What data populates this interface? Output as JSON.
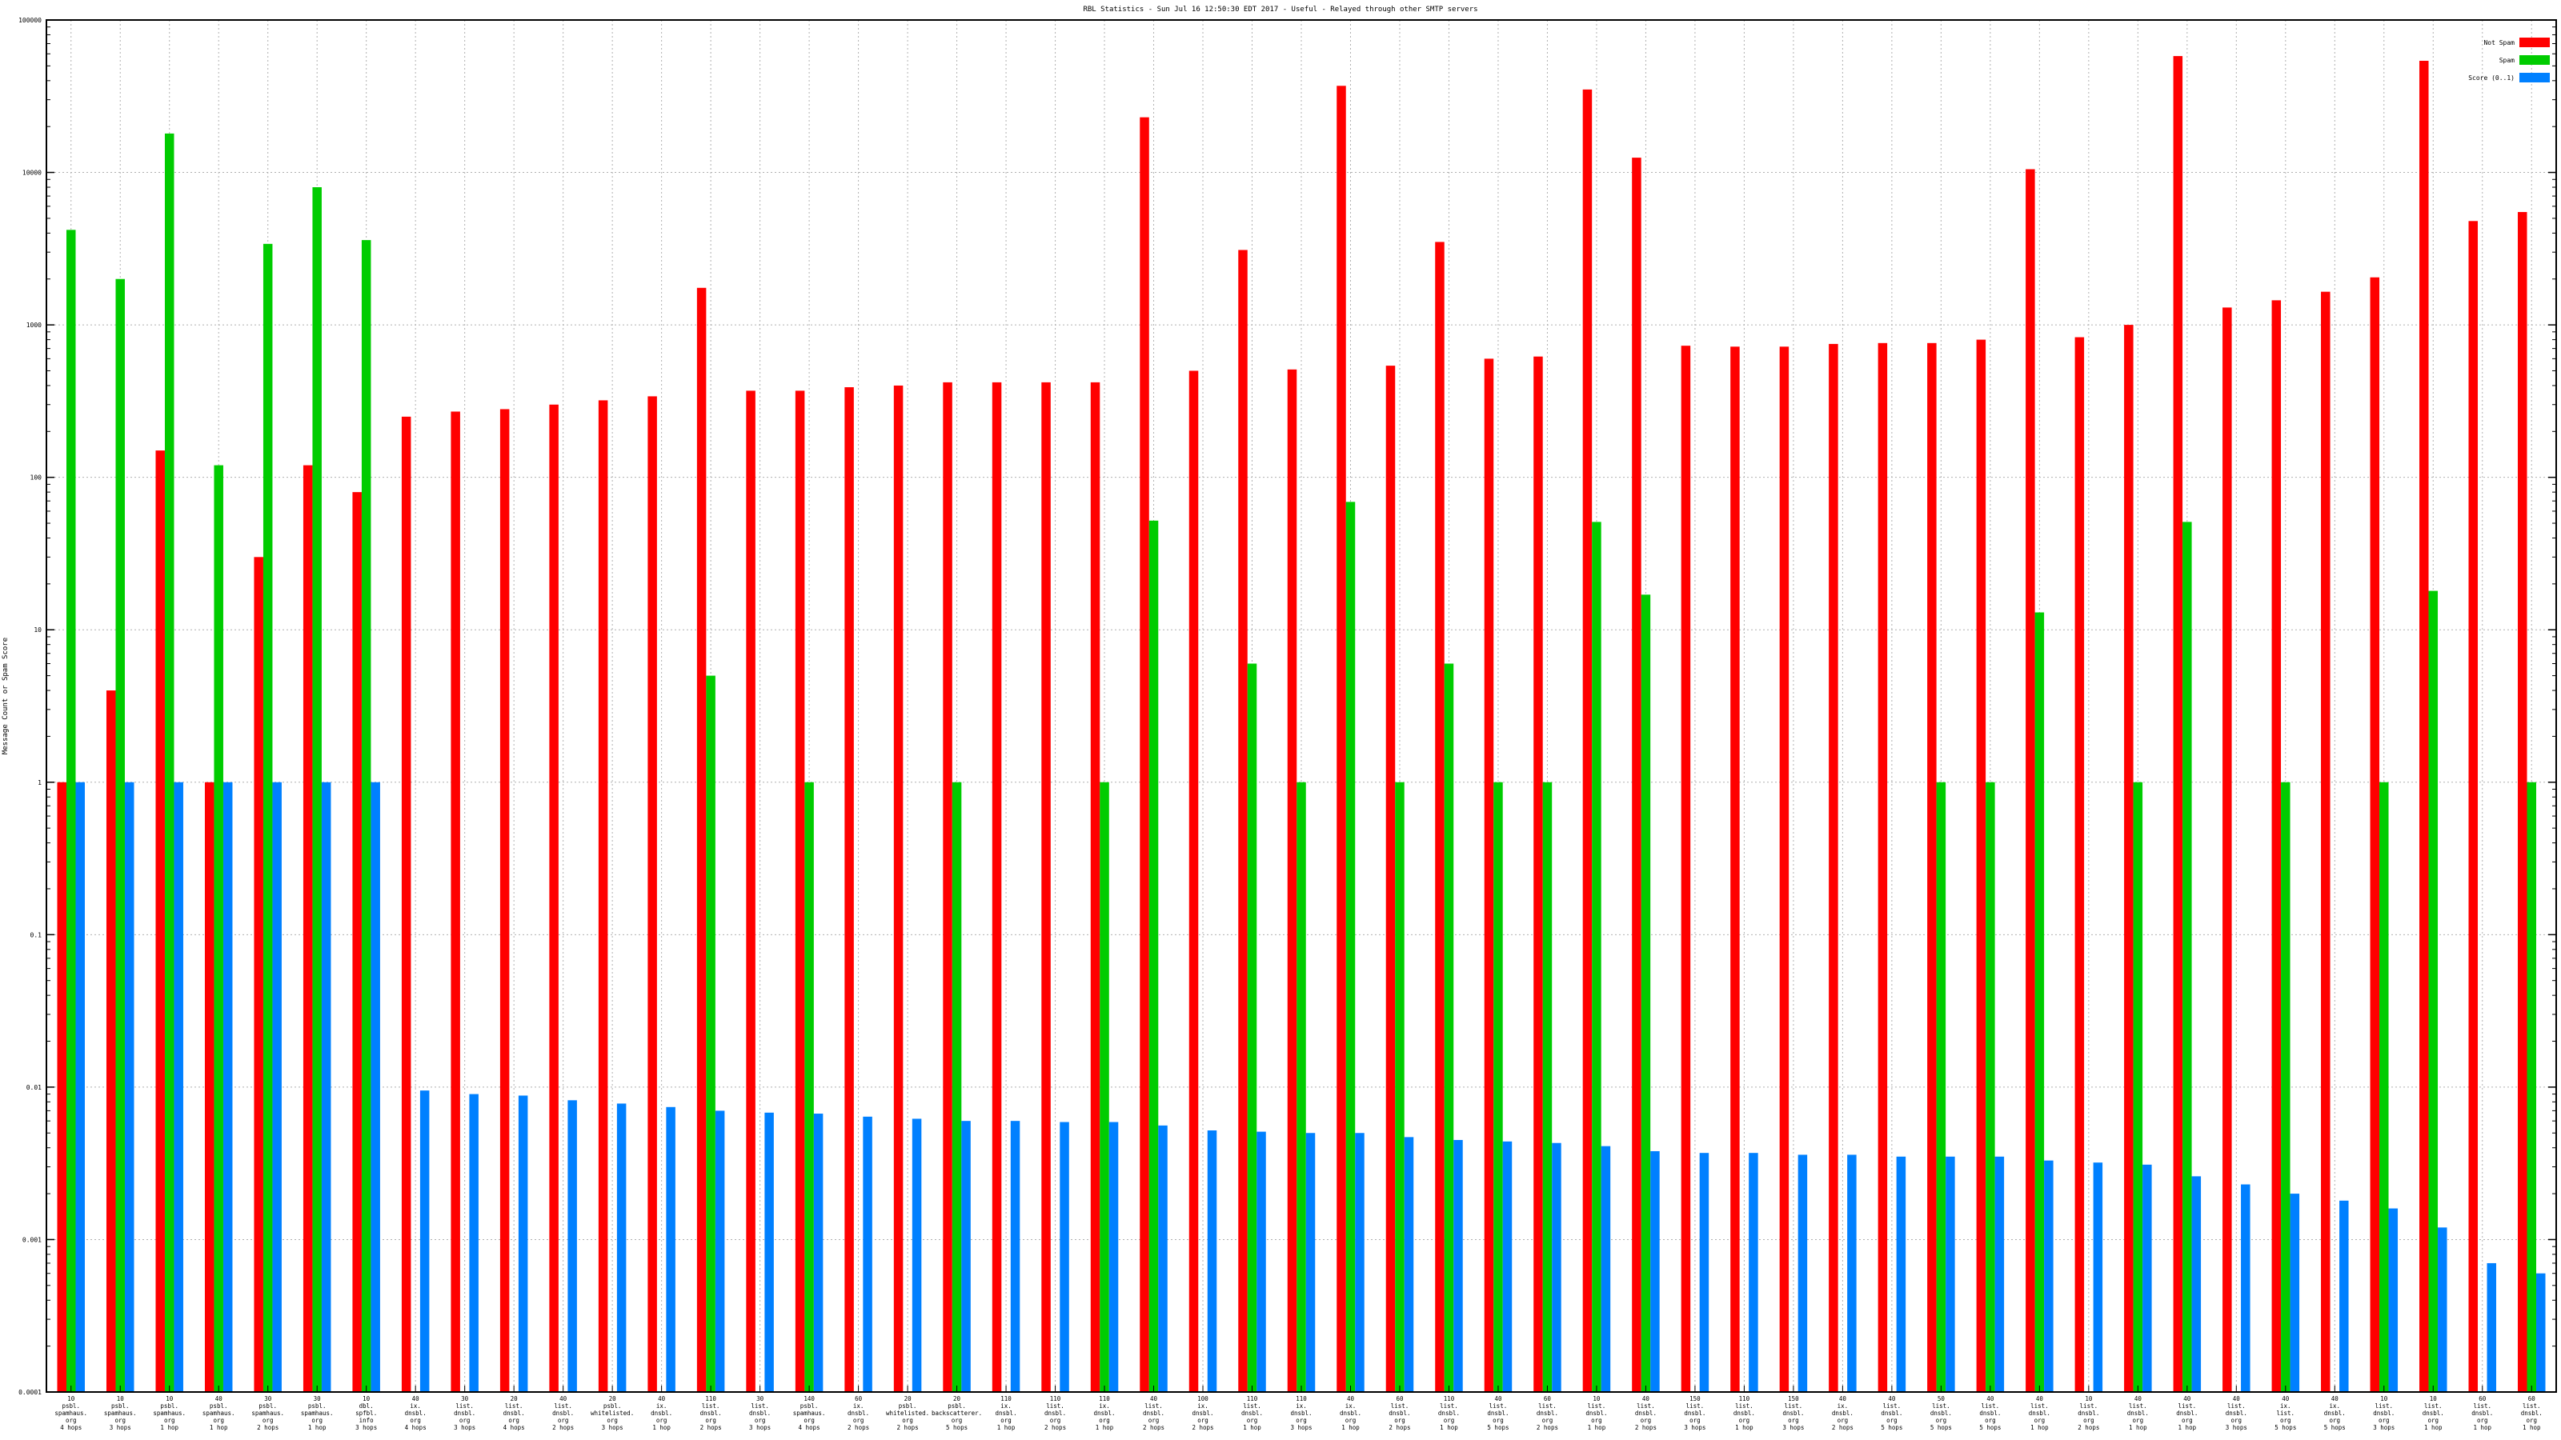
{
  "chart_data": {
    "type": "bar",
    "title": "RBL Statistics - Sun Jul 16 12:50:30 EDT 2017 - Useful - Relayed through other SMTP servers",
    "ylabel": "Message Count or Spam Score",
    "xlabel": "",
    "yscale": "log",
    "ylim": [
      0.0001,
      100000
    ],
    "grid": true,
    "legend_position": "top-right",
    "yticks": [
      "0.0001",
      "0.001",
      "0.01",
      "0.1",
      "1",
      "10",
      "100",
      "1000",
      "10000",
      "100000"
    ],
    "categories": [
      [
        "10",
        "psbl.",
        "spamhaus.",
        "org",
        "4 hops"
      ],
      [
        "10",
        "psbl.",
        "spamhaus.",
        "org",
        "3 hops"
      ],
      [
        "10",
        "psbl.",
        "spamhaus.",
        "org",
        "1 hop"
      ],
      [
        "40",
        "psbl.",
        "spamhaus.",
        "org",
        "1 hop"
      ],
      [
        "30",
        "psbl.",
        "spamhaus.",
        "org",
        "2 hops"
      ],
      [
        "30",
        "psbl.",
        "spamhaus.",
        "org",
        "1 hop"
      ],
      [
        "10",
        "dbl.",
        "spfbl.",
        "info",
        "3 hops"
      ],
      [
        "40",
        "ix.",
        "dnsbl.",
        "org",
        "4 hops"
      ],
      [
        "30",
        "list.",
        "dnsbl.",
        "org",
        "3 hops"
      ],
      [
        "20",
        "list.",
        "dnsbl.",
        "org",
        "4 hops"
      ],
      [
        "40",
        "list.",
        "dnsbl.",
        "org",
        "2 hops"
      ],
      [
        "20",
        "psbl.",
        "whitelisted.",
        "org",
        "3 hops"
      ],
      [
        "40",
        "ix.",
        "dnsbl.",
        "org",
        "1 hop"
      ],
      [
        "110",
        "list.",
        "dnsbl.",
        "org",
        "2 hops"
      ],
      [
        "30",
        "list.",
        "dnsbl.",
        "org",
        "3 hops"
      ],
      [
        "140",
        "psbl.",
        "spamhaus.",
        "org",
        "4 hops"
      ],
      [
        "60",
        "ix.",
        "dnsbl.",
        "org",
        "2 hops"
      ],
      [
        "20",
        "psbl.",
        "whitelisted.",
        "org",
        "2 hops"
      ],
      [
        "20",
        "psbl.",
        "backscatterer.",
        "org",
        "5 hops"
      ],
      [
        "110",
        "ix.",
        "dnsbl.",
        "org",
        "1 hop"
      ],
      [
        "110",
        "list.",
        "dnsbl.",
        "org",
        "2 hops"
      ],
      [
        "110",
        "ix.",
        "dnsbl.",
        "org",
        "1 hop"
      ],
      [
        "40",
        "list.",
        "dnsbl.",
        "org",
        "2 hops"
      ],
      [
        "100",
        "ix.",
        "dnsbl.",
        "org",
        "2 hops"
      ],
      [
        "110",
        "list.",
        "dnsbl.",
        "org",
        "1 hop"
      ],
      [
        "110",
        "ix.",
        "dnsbl.",
        "org",
        "3 hops"
      ],
      [
        "40",
        "ix.",
        "dnsbl.",
        "org",
        "1 hop"
      ],
      [
        "60",
        "list.",
        "dnsbl.",
        "org",
        "2 hops"
      ],
      [
        "110",
        "list.",
        "dnsbl.",
        "org",
        "1 hop"
      ],
      [
        "40",
        "list.",
        "dnsbl.",
        "org",
        "5 hops"
      ],
      [
        "60",
        "list.",
        "dnsbl.",
        "org",
        "2 hops"
      ],
      [
        "10",
        "list.",
        "dnsbl.",
        "org",
        "1 hop"
      ],
      [
        "40",
        "list.",
        "dnsbl.",
        "org",
        "2 hops"
      ],
      [
        "150",
        "list.",
        "dnsbl.",
        "org",
        "3 hops"
      ],
      [
        "110",
        "list.",
        "dnsbl.",
        "org",
        "1 hop"
      ],
      [
        "150",
        "list.",
        "dnsbl.",
        "org",
        "3 hops"
      ],
      [
        "40",
        "ix.",
        "dnsbl.",
        "org",
        "2 hops"
      ],
      [
        "40",
        "list.",
        "dnsbl.",
        "org",
        "5 hops"
      ],
      [
        "50",
        "list.",
        "dnsbl.",
        "org",
        "5 hops"
      ],
      [
        "40",
        "list.",
        "dnsbl.",
        "org",
        "5 hops"
      ],
      [
        "40",
        "list.",
        "dnsbl.",
        "org",
        "1 hop"
      ],
      [
        "10",
        "list.",
        "dnsbl.",
        "org",
        "2 hops"
      ],
      [
        "40",
        "list.",
        "dnsbl.",
        "org",
        "1 hop"
      ],
      [
        "40",
        "list.",
        "dnsbl.",
        "org",
        "1 hop"
      ],
      [
        "40",
        "list.",
        "dnsbl.",
        "org",
        "3 hops"
      ],
      [
        "40",
        "ix.",
        "list.",
        "org",
        "5 hops"
      ],
      [
        "40",
        "ix.",
        "dnsbl.",
        "org",
        "5 hops"
      ],
      [
        "10",
        "list.",
        "dnsbl.",
        "org",
        "3 hops"
      ],
      [
        "10",
        "list.",
        "dnsbl.",
        "org",
        "1 hop"
      ],
      [
        "60",
        "list.",
        "dnsbl.",
        "org",
        "1 hop"
      ],
      [
        "60",
        "list.",
        "dnsbl.",
        "org",
        "1 hop"
      ]
    ],
    "series": [
      {
        "name": "Not Spam",
        "color": "#ff0000",
        "values": [
          1,
          4,
          150,
          1,
          30,
          120,
          80,
          250,
          270,
          280,
          300,
          320,
          340,
          1750,
          370,
          370,
          390,
          400,
          420,
          420,
          420,
          420,
          23000,
          500,
          3100,
          510,
          37000,
          540,
          3500,
          600,
          620,
          35000,
          12500,
          730,
          720,
          720,
          750,
          760,
          760,
          800,
          10500,
          830,
          1000,
          58000,
          1300,
          1450,
          1650,
          2050,
          54000,
          4800,
          5500
        ]
      },
      {
        "name": "Spam",
        "color": "#00cc00",
        "values": [
          4200,
          2000,
          18000,
          120,
          3400,
          8000,
          3600,
          null,
          null,
          null,
          null,
          null,
          null,
          5,
          null,
          1,
          null,
          null,
          1,
          null,
          null,
          1,
          52,
          null,
          6,
          1,
          69,
          1,
          6,
          1,
          1,
          51,
          17,
          null,
          null,
          null,
          null,
          null,
          1,
          1,
          13,
          null,
          1,
          51,
          null,
          1,
          null,
          1,
          18,
          null,
          1
        ]
      },
      {
        "name": "Score (0..1)",
        "color": "#0080ff",
        "values": [
          1,
          1,
          1,
          1,
          1,
          1,
          1,
          0.0095,
          0.009,
          0.0088,
          0.0082,
          0.0078,
          0.0074,
          0.007,
          0.0068,
          0.0067,
          0.0064,
          0.0062,
          0.006,
          0.006,
          0.0059,
          0.0059,
          0.0056,
          0.0052,
          0.0051,
          0.005,
          0.005,
          0.0047,
          0.0045,
          0.0044,
          0.0043,
          0.0041,
          0.0038,
          0.0037,
          0.0037,
          0.0036,
          0.0036,
          0.0035,
          0.0035,
          0.0035,
          0.0033,
          0.0032,
          0.0031,
          0.0026,
          0.0023,
          0.002,
          0.0018,
          0.0016,
          0.0012,
          0.0007,
          0.0006
        ]
      }
    ]
  }
}
